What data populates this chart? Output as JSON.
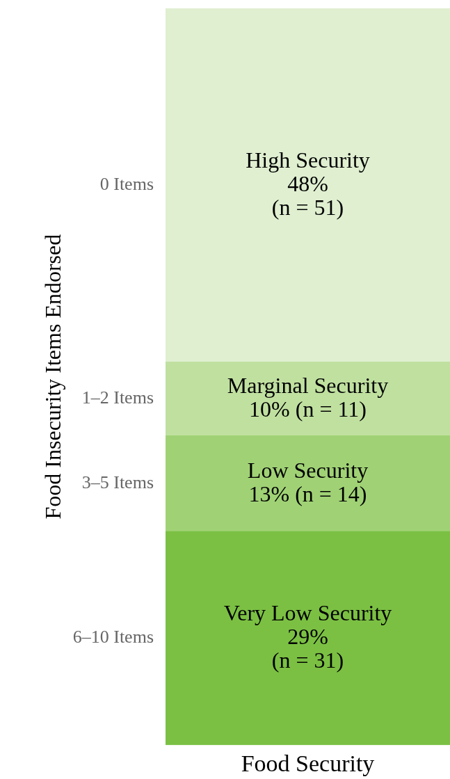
{
  "chart_data": {
    "type": "bar",
    "stacked": true,
    "xlabel": "Food Security",
    "ylabel": "Food Insecurity Items Endorsed",
    "categories": [
      null
    ],
    "ylim": [
      0,
      100
    ],
    "tick_labels": false,
    "grid": false,
    "legend": false,
    "series": [
      {
        "name": "6–10 Items",
        "color": "#7bc043",
        "values": [
          29
        ],
        "value_labels": [
          "Very Low Security\n29%\n(n = 31)"
        ]
      },
      {
        "name": "3–5 Items",
        "color": "#a0d275",
        "values": [
          13
        ],
        "value_labels": [
          "Low Security\n13% (n = 14)"
        ]
      },
      {
        "name": "1–2 Items",
        "color": "#c0e0a0",
        "values": [
          10
        ],
        "value_labels": [
          "Marginal Security\n10% (n = 11)"
        ]
      },
      {
        "name": "0 Items",
        "color": "#dfefd0",
        "values": [
          48
        ],
        "value_labels": [
          "High Security\n48%\n(n = 51)"
        ]
      }
    ]
  }
}
